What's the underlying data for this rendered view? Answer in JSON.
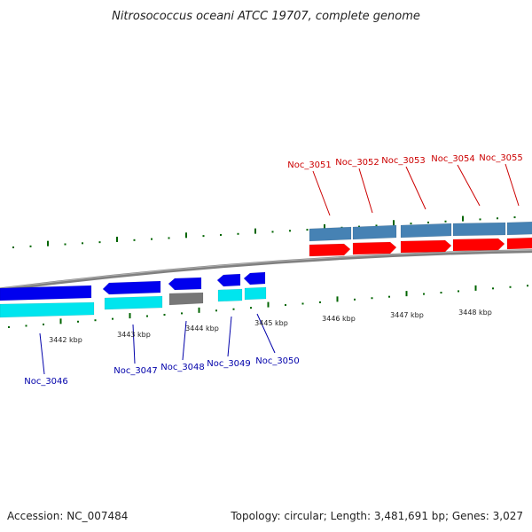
{
  "title": "Nitrosococcus oceani ATCC 19707, complete genome",
  "footer": {
    "accession": "Accession: NC_007484",
    "topology": "Topology: circular; Length: 3,481,691 bp; Genes: 3,027"
  },
  "colors": {
    "forward_label": "#cc0000",
    "reverse_label": "#0000aa",
    "forward_cds": "#ff0000",
    "forward_gene": "#4682b4",
    "reverse_cds": "#0000ee",
    "reverse_gene": "#00e5ee",
    "pseudo": "#777777",
    "tick": "#006400",
    "backbone": "#808080"
  },
  "ruler_labels": [
    "3442 kbp",
    "3443 kbp",
    "3444 kbp",
    "3445 kbp",
    "3446 kbp",
    "3447 kbp",
    "3448 kbp"
  ],
  "genes": [
    {
      "id": "Noc_3046",
      "strand": "reverse"
    },
    {
      "id": "Noc_3047",
      "strand": "reverse"
    },
    {
      "id": "Noc_3048",
      "strand": "reverse"
    },
    {
      "id": "Noc_3049",
      "strand": "reverse"
    },
    {
      "id": "Noc_3050",
      "strand": "reverse"
    },
    {
      "id": "Noc_3051",
      "strand": "forward"
    },
    {
      "id": "Noc_3052",
      "strand": "forward"
    },
    {
      "id": "Noc_3053",
      "strand": "forward"
    },
    {
      "id": "Noc_3054",
      "strand": "forward"
    },
    {
      "id": "Noc_3055",
      "strand": "forward"
    }
  ]
}
